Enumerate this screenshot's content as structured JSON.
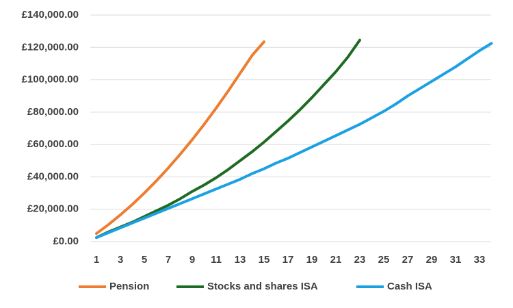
{
  "chart_data": {
    "type": "line",
    "categories": [
      1,
      null,
      3,
      null,
      5,
      null,
      7,
      null,
      9,
      null,
      11,
      null,
      13,
      null,
      15,
      null,
      17,
      null,
      19,
      null,
      21,
      null,
      23,
      null,
      25,
      null,
      27,
      null,
      29,
      null,
      31,
      null,
      33,
      null
    ],
    "series": [
      {
        "name": "Pension",
        "color": "#ed7d31",
        "values": [
          5000,
          10500,
          16500,
          23000,
          30000,
          37500,
          45500,
          54000,
          63000,
          72500,
          82500,
          93000,
          104000,
          115000,
          123500,
          null,
          null,
          null,
          null,
          null,
          null,
          null,
          null,
          null,
          null,
          null,
          null,
          null,
          null,
          null,
          null,
          null,
          null,
          null
        ]
      },
      {
        "name": "Stocks and shares ISA",
        "color": "#1e6b24",
        "values": [
          2500,
          6000,
          9000,
          12000,
          15500,
          19000,
          22500,
          26500,
          31000,
          35000,
          39500,
          44500,
          50000,
          55500,
          61500,
          68000,
          74500,
          81500,
          89000,
          97000,
          105000,
          114000,
          124500,
          null,
          null,
          null,
          null,
          null,
          null,
          null,
          null,
          null,
          null,
          null
        ]
      },
      {
        "name": "Cash ISA",
        "color": "#1ba1e2",
        "values": [
          2500,
          5500,
          8500,
          11500,
          14500,
          17500,
          20500,
          23500,
          26500,
          29500,
          32500,
          35500,
          38500,
          42000,
          45000,
          48500,
          51500,
          55000,
          58500,
          62000,
          65500,
          69000,
          72500,
          76500,
          80500,
          85000,
          90000,
          94500,
          99000,
          103500,
          108000,
          113000,
          118000,
          122500
        ]
      }
    ],
    "ylim": [
      0,
      140000
    ],
    "yticks": [
      {
        "value": 0,
        "label": "£0.00"
      },
      {
        "value": 20000,
        "label": "£20,000.00"
      },
      {
        "value": 40000,
        "label": "£40,000.00"
      },
      {
        "value": 60000,
        "label": "£60,000.00"
      },
      {
        "value": 80000,
        "label": "£80,000.00"
      },
      {
        "value": 100000,
        "label": "£100,000.00"
      },
      {
        "value": 120000,
        "label": "£120,000.00"
      },
      {
        "value": 140000,
        "label": "£140,000.00"
      }
    ],
    "grid": true,
    "legend": "bottom"
  }
}
